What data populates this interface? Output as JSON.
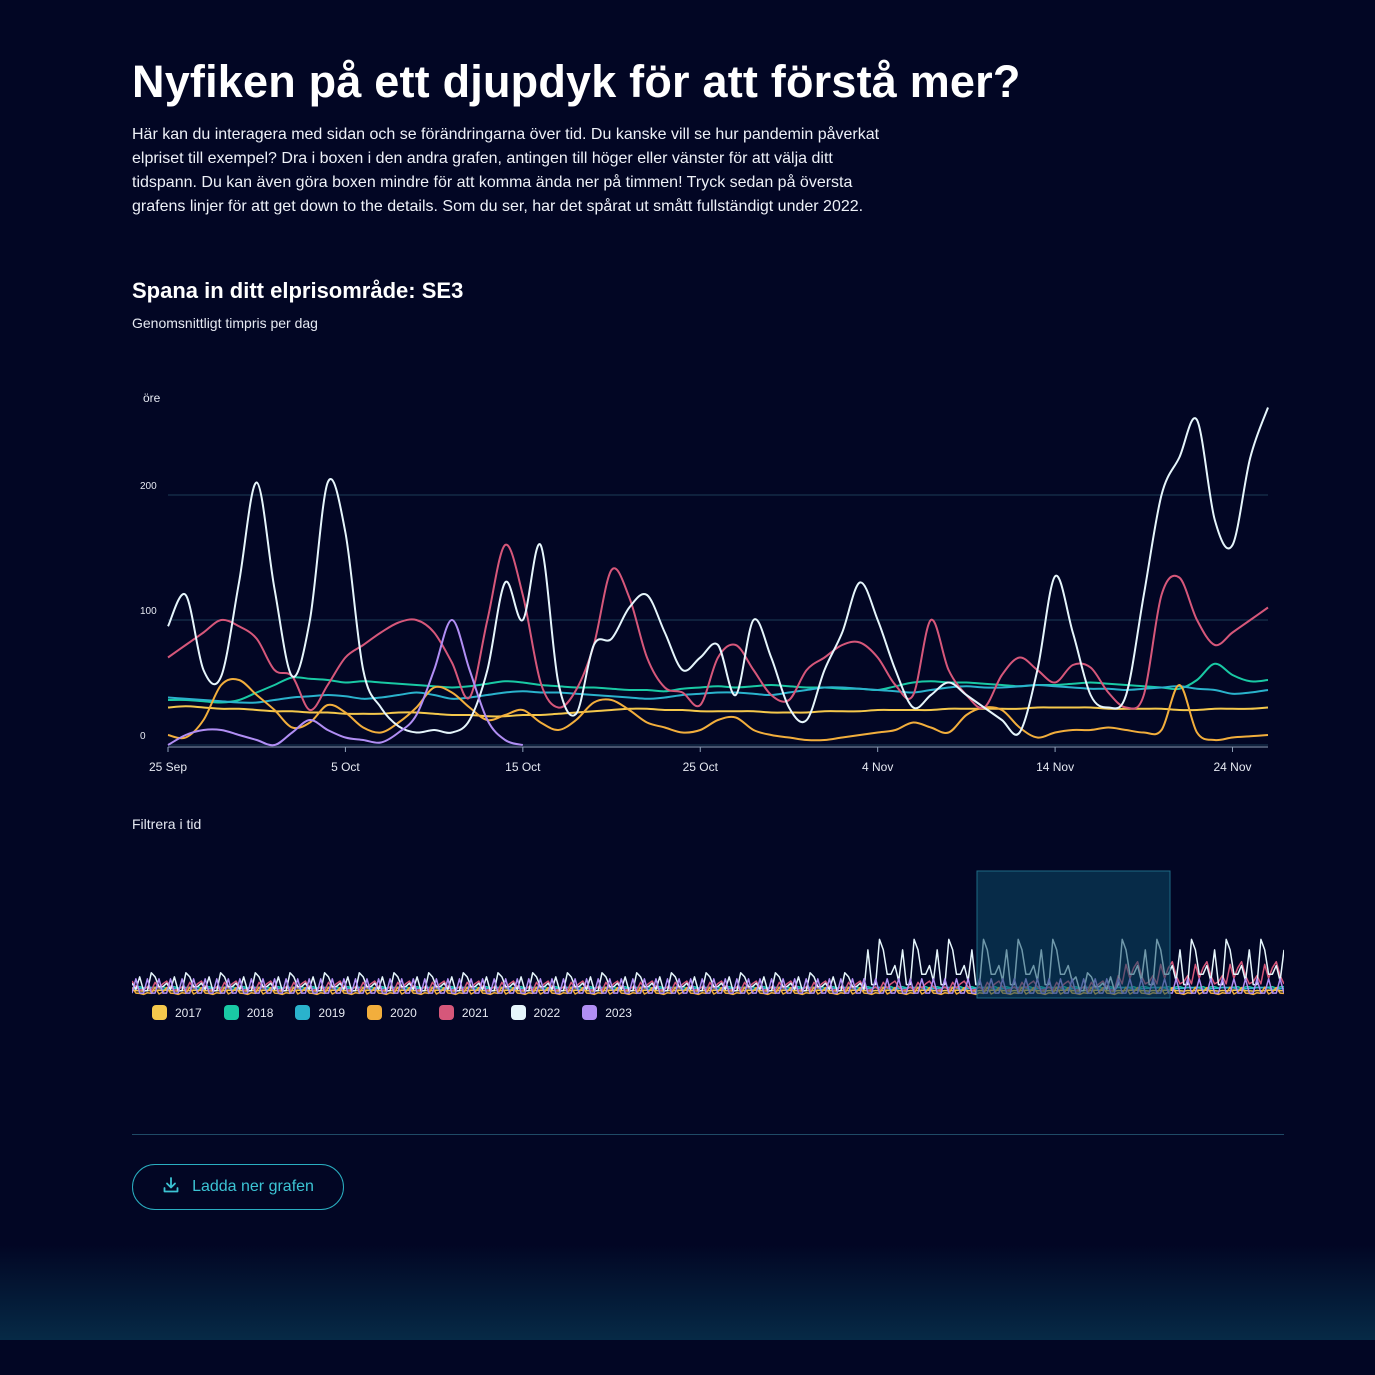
{
  "heading": "Nyfiken på ett djupdyk för att förstå mer?",
  "intro": "Här kan du interagera med sidan och se förändringarna över tid. Du kanske vill se hur pandemin påverkat elpriset till exempel? Dra i boxen i den andra grafen, antingen till höger eller vänster för att välja ditt tidspann. Du kan även göra boxen mindre för att komma ända ner på timmen! Tryck sedan på översta grafens linjer för att get down to the details. Som du ser, har det spårat ut smått fullständigt under 2022.",
  "section_title": "Spana in ditt elprisområde: SE3",
  "subtitle": "Genomsnittligt timpris per dag",
  "filter_label": "Filtrera i tid",
  "download_label": "Ladda ner grafen",
  "colors": {
    "background": "#020624",
    "accent": "#2aaec0",
    "grid": "#1c3c56"
  },
  "chart_data": {
    "type": "line",
    "title": "Spana in ditt elprisområde: SE3",
    "ylabel": "öre",
    "ylim": [
      0,
      260
    ],
    "grid": true,
    "x_start": "25 Sep",
    "x_end": "26 Nov",
    "xticks": [
      "25 Sep",
      "5 Oct",
      "15 Oct",
      "25 Oct",
      "4 Nov",
      "14 Nov",
      "24 Nov"
    ],
    "yticks": [
      0,
      100,
      200
    ],
    "legend_position": "bottom-left",
    "series": [
      {
        "name": "2017",
        "color": "#f5c84c",
        "values": [
          30,
          31,
          30,
          29,
          29,
          28,
          27,
          27,
          26,
          26,
          25,
          25,
          25,
          26,
          26,
          25,
          24,
          24,
          23,
          23,
          24,
          24,
          25,
          26,
          27,
          28,
          29,
          29,
          28,
          28,
          27,
          27,
          27,
          27,
          26,
          26,
          26,
          27,
          27,
          27,
          28,
          28,
          28,
          28,
          29,
          29,
          29,
          29,
          29,
          30,
          30,
          30,
          30,
          29,
          29,
          29,
          29,
          28,
          28,
          29,
          29,
          29,
          30
        ]
      },
      {
        "name": "2018",
        "color": "#19c9a4",
        "values": [
          36,
          36,
          35,
          34,
          36,
          42,
          48,
          54,
          53,
          52,
          50,
          51,
          50,
          49,
          48,
          47,
          46,
          47,
          49,
          51,
          50,
          48,
          47,
          46,
          46,
          45,
          44,
          44,
          43,
          45,
          46,
          47,
          46,
          47,
          48,
          47,
          46,
          46,
          45,
          45,
          44,
          47,
          50,
          51,
          50,
          50,
          49,
          48,
          47,
          48,
          48,
          49,
          50,
          49,
          48,
          47,
          46,
          45,
          52,
          65,
          56,
          51,
          52
        ]
      },
      {
        "name": "2019",
        "color": "#2ab2cc",
        "values": [
          38,
          37,
          36,
          35,
          34,
          34,
          36,
          38,
          39,
          40,
          39,
          37,
          38,
          40,
          42,
          40,
          37,
          38,
          40,
          42,
          43,
          42,
          42,
          41,
          40,
          39,
          38,
          37,
          38,
          40,
          41,
          42,
          42,
          41,
          40,
          42,
          44,
          46,
          46,
          45,
          44,
          43,
          42,
          44,
          46,
          47,
          46,
          46,
          47,
          48,
          47,
          46,
          45,
          45,
          44,
          45,
          46,
          47,
          45,
          44,
          41,
          42,
          44
        ]
      },
      {
        "name": "2020",
        "color": "#f2ae3c",
        "values": [
          8,
          6,
          20,
          48,
          52,
          40,
          28,
          14,
          18,
          32,
          26,
          14,
          10,
          18,
          30,
          46,
          42,
          30,
          20,
          24,
          28,
          18,
          12,
          20,
          34,
          36,
          28,
          18,
          14,
          10,
          12,
          20,
          22,
          12,
          8,
          6,
          4,
          4,
          6,
          8,
          10,
          12,
          18,
          14,
          10,
          24,
          30,
          28,
          14,
          6,
          10,
          12,
          12,
          14,
          12,
          10,
          12,
          48,
          10,
          4,
          6,
          7,
          8
        ]
      },
      {
        "name": "2021",
        "color": "#d6577a",
        "values": [
          70,
          80,
          90,
          100,
          95,
          85,
          60,
          55,
          28,
          48,
          70,
          80,
          90,
          98,
          100,
          90,
          66,
          38,
          100,
          160,
          120,
          50,
          30,
          44,
          80,
          140,
          118,
          70,
          46,
          42,
          32,
          70,
          80,
          60,
          40,
          36,
          60,
          70,
          80,
          82,
          70,
          48,
          40,
          100,
          60,
          40,
          30,
          56,
          70,
          60,
          50,
          64,
          62,
          42,
          30,
          40,
          120,
          134,
          100,
          80,
          90,
          100,
          110
        ]
      },
      {
        "name": "2022",
        "color": "#e6f6fc",
        "values": [
          95,
          120,
          60,
          55,
          130,
          210,
          125,
          55,
          100,
          210,
          170,
          60,
          30,
          15,
          10,
          12,
          10,
          20,
          60,
          130,
          100,
          160,
          50,
          25,
          80,
          85,
          110,
          120,
          90,
          60,
          70,
          80,
          40,
          100,
          70,
          30,
          20,
          60,
          90,
          130,
          100,
          60,
          30,
          40,
          50,
          40,
          30,
          20,
          10,
          60,
          135,
          90,
          40,
          30,
          40,
          120,
          200,
          230,
          260,
          180,
          160,
          230,
          270
        ]
      },
      {
        "name": "2023",
        "color": "#b18ef4",
        "values": [
          0,
          8,
          12,
          12,
          8,
          4,
          0,
          10,
          20,
          12,
          6,
          4,
          2,
          10,
          24,
          60,
          100,
          60,
          20,
          4,
          0
        ]
      }
    ]
  }
}
